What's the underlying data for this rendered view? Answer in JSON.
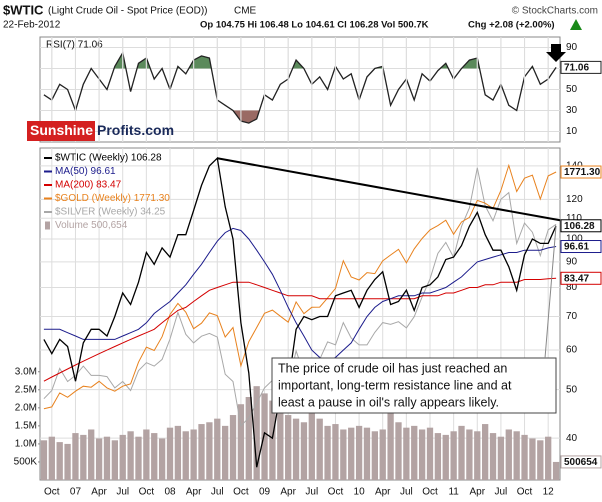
{
  "header": {
    "symbol": "$WTIC",
    "title": "(Light Crude Oil - Spot Price (EOD))",
    "exchange": "CME",
    "credit": "© StockCharts.com",
    "date": "22-Feb-2012",
    "quote": "Op 104.75 Hi 106.48 Lo 104.61 Cl 106.28 Vol 500.7K",
    "change": "Chg +2.08 (+2.00%)"
  },
  "logo": [
    "Sunshine",
    "Profits.com"
  ],
  "chart_data": [
    {
      "type": "line",
      "title": "RSI(7) 71.06",
      "ylim": [
        0,
        100
      ],
      "yticks": [
        10,
        30,
        50,
        70,
        90
      ],
      "grid": true,
      "fill_above": {
        "value": 70,
        "color": "#5b8a5b"
      },
      "fill_below": {
        "value": 30,
        "color": "#9a6a64"
      },
      "x": [
        "2006-09",
        "2006-10",
        "2006-11",
        "2006-12",
        "2007-01",
        "2007-02",
        "2007-03",
        "2007-04",
        "2007-05",
        "2007-06",
        "2007-07",
        "2007-08",
        "2007-09",
        "2007-10",
        "2007-11",
        "2007-12",
        "2008-01",
        "2008-02",
        "2008-03",
        "2008-04",
        "2008-05",
        "2008-06",
        "2008-07",
        "2008-08",
        "2008-09",
        "2008-10",
        "2008-11",
        "2008-12",
        "2009-01",
        "2009-02",
        "2009-03",
        "2009-04",
        "2009-05",
        "2009-06",
        "2009-07",
        "2009-08",
        "2009-09",
        "2009-10",
        "2009-11",
        "2009-12",
        "2010-01",
        "2010-02",
        "2010-03",
        "2010-04",
        "2010-05",
        "2010-06",
        "2010-07",
        "2010-08",
        "2010-09",
        "2010-10",
        "2010-11",
        "2010-12",
        "2011-01",
        "2011-02",
        "2011-03",
        "2011-04",
        "2011-05",
        "2011-06",
        "2011-07",
        "2011-08",
        "2011-09",
        "2011-10",
        "2011-11",
        "2011-12",
        "2012-01",
        "2012-02"
      ],
      "series": [
        {
          "name": "RSI(7)",
          "color": "#222222",
          "end_label": true,
          "values": [
            45,
            40,
            55,
            50,
            30,
            55,
            70,
            60,
            50,
            72,
            85,
            48,
            75,
            80,
            60,
            70,
            50,
            72,
            65,
            78,
            82,
            80,
            40,
            35,
            30,
            20,
            18,
            22,
            45,
            40,
            55,
            60,
            78,
            70,
            55,
            62,
            50,
            72,
            60,
            65,
            40,
            62,
            70,
            72,
            35,
            50,
            60,
            40,
            65,
            58,
            68,
            75,
            60,
            70,
            78,
            80,
            45,
            40,
            55,
            35,
            30,
            62,
            72,
            55,
            60,
            71.06
          ]
        }
      ]
    },
    {
      "type": "line",
      "legend": "upper left",
      "grid": true,
      "ylim": [
        33,
        152
      ],
      "ylog": true,
      "yticks": [
        40,
        50,
        60,
        70,
        80,
        90,
        100,
        110,
        120,
        140
      ],
      "y2lim": [
        433,
        1977
      ],
      "y2log": true,
      "y3lim": [
        7,
        55
      ],
      "y3log": true,
      "yvlim": [
        0,
        9200000
      ],
      "yvticks": [
        {
          "value": 500000,
          "label": "500K"
        },
        {
          "value": 1000000,
          "label": "1.0M"
        },
        {
          "value": 1500000,
          "label": "1.5M"
        },
        {
          "value": 2000000,
          "label": "2.0M"
        },
        {
          "value": 2500000,
          "label": "2.5M"
        },
        {
          "value": 3000000,
          "label": "3.0M"
        }
      ],
      "x": [
        "2006-09",
        "2006-10",
        "2006-11",
        "2006-12",
        "2007-01",
        "2007-02",
        "2007-03",
        "2007-04",
        "2007-05",
        "2007-06",
        "2007-07",
        "2007-08",
        "2007-09",
        "2007-10",
        "2007-11",
        "2007-12",
        "2008-01",
        "2008-02",
        "2008-03",
        "2008-04",
        "2008-05",
        "2008-06",
        "2008-07",
        "2008-08",
        "2008-09",
        "2008-10",
        "2008-11",
        "2008-12",
        "2009-01",
        "2009-02",
        "2009-03",
        "2009-04",
        "2009-05",
        "2009-06",
        "2009-07",
        "2009-08",
        "2009-09",
        "2009-10",
        "2009-11",
        "2009-12",
        "2010-01",
        "2010-02",
        "2010-03",
        "2010-04",
        "2010-05",
        "2010-06",
        "2010-07",
        "2010-08",
        "2010-09",
        "2010-10",
        "2010-11",
        "2010-12",
        "2011-01",
        "2011-02",
        "2011-03",
        "2011-04",
        "2011-05",
        "2011-06",
        "2011-07",
        "2011-08",
        "2011-09",
        "2011-10",
        "2011-11",
        "2011-12",
        "2012-01",
        "2012-02"
      ],
      "xticks": [
        {
          "value": "2006-10",
          "label": "Oct"
        },
        {
          "value": "2007-01",
          "label": "07"
        },
        {
          "value": "2007-04",
          "label": "Apr"
        },
        {
          "value": "2007-07",
          "label": "Jul"
        },
        {
          "value": "2007-10",
          "label": "Oct"
        },
        {
          "value": "2008-01",
          "label": "08"
        },
        {
          "value": "2008-04",
          "label": "Apr"
        },
        {
          "value": "2008-07",
          "label": "Jul"
        },
        {
          "value": "2008-10",
          "label": "Oct"
        },
        {
          "value": "2009-01",
          "label": "09"
        },
        {
          "value": "2009-04",
          "label": "Apr"
        },
        {
          "value": "2009-07",
          "label": "Jul"
        },
        {
          "value": "2009-10",
          "label": "Oct"
        },
        {
          "value": "2010-01",
          "label": "10"
        },
        {
          "value": "2010-04",
          "label": "Apr"
        },
        {
          "value": "2010-07",
          "label": "Jul"
        },
        {
          "value": "2010-10",
          "label": "Oct"
        },
        {
          "value": "2011-01",
          "label": "11"
        },
        {
          "value": "2011-04",
          "label": "Apr"
        },
        {
          "value": "2011-07",
          "label": "Jul"
        },
        {
          "value": "2011-10",
          "label": "Oct"
        },
        {
          "value": "2012-01",
          "label": "12"
        }
      ],
      "series": [
        {
          "name": "Volume 500,654",
          "type": "bar",
          "axis": "yv",
          "color": "#b3a3a3",
          "end_label": true,
          "values": [
            1100000,
            1200000,
            1050000,
            1000000,
            1300000,
            1250000,
            1400000,
            1150000,
            1200000,
            1100000,
            1250000,
            1350000,
            1200000,
            1400000,
            1300000,
            1150000,
            1450000,
            1500000,
            1350000,
            1400000,
            1550000,
            1600000,
            1700000,
            1500000,
            1800000,
            2100000,
            2300000,
            2600000,
            2400000,
            2200000,
            2000000,
            1800000,
            1700000,
            1600000,
            1900000,
            1700000,
            1500000,
            1550000,
            1400000,
            1450000,
            1500000,
            1450000,
            1350000,
            1400000,
            1900000,
            1600000,
            1450000,
            1500000,
            1400000,
            1450000,
            1300000,
            1250000,
            1350000,
            1500000,
            1400000,
            1350000,
            1550000,
            1300000,
            1200000,
            1400000,
            1350000,
            1250000,
            1150000,
            1100000,
            1200000,
            500654
          ]
        },
        {
          "name": "$SILVER (Weekly) 34.25",
          "axis": "y3",
          "color": "#a8a8a8",
          "values": [
            11.6,
            12.2,
            14.0,
            12.9,
            13.4,
            14.2,
            13.4,
            13.4,
            13.3,
            12.4,
            12.9,
            12.2,
            13.8,
            14.5,
            14.2,
            14.8,
            16.8,
            19.8,
            17.3,
            16.4,
            17.1,
            17.4,
            17.0,
            13.5,
            12.9,
            9.8,
            10.3,
            11.3,
            12.4,
            13.0,
            13.1,
            12.6,
            15.6,
            13.6,
            13.9,
            14.8,
            16.5,
            16.2,
            18.6,
            16.9,
            16.2,
            16.2,
            17.5,
            18.6,
            18.4,
            18.7,
            18.0,
            19.3,
            21.8,
            24.4,
            28.6,
            30.6,
            27.9,
            33.8,
            37.9,
            48.6,
            38.4,
            35.0,
            40.0,
            41.7,
            30.4,
            34.5,
            32.6,
            28.2,
            33.1,
            34.25
          ]
        },
        {
          "name": "$GOLD (Weekly) 1771.30",
          "axis": "y2",
          "color": "#e8821e",
          "last_label": "1771.30",
          "values": [
            600,
            605,
            645,
            632,
            650,
            665,
            662,
            680,
            660,
            650,
            665,
            672,
            742,
            795,
            783,
            834,
            923,
            971,
            933,
            865,
            887,
            930,
            918,
            833,
            870,
            730,
            815,
            870,
            928,
            942,
            916,
            891,
            978,
            927,
            954,
            955,
            996,
            1040,
            1180,
            1096,
            1081,
            1118,
            1113,
            1180,
            1212,
            1244,
            1169,
            1246,
            1307,
            1359,
            1386,
            1421,
            1332,
            1409,
            1439,
            1556,
            1536,
            1500,
            1628,
            1826,
            1620,
            1722,
            1746,
            1566,
            1740,
            1771.3
          ]
        },
        {
          "name": "MA(200) 83.47",
          "color": "#d40000",
          "end_label": true,
          "values": [
            52,
            53,
            54,
            55,
            56,
            57,
            58,
            59,
            60,
            61,
            62,
            63,
            64,
            65,
            66,
            68,
            70,
            72,
            73,
            75,
            77,
            79,
            80,
            81,
            82,
            82,
            82,
            81,
            80,
            79,
            78,
            77,
            77,
            77,
            77,
            76,
            76,
            76,
            76,
            76,
            76,
            76,
            76,
            76,
            76,
            76,
            76,
            76,
            77,
            77,
            77,
            78,
            78,
            79,
            80,
            80,
            81,
            81,
            82,
            82,
            82,
            83,
            83,
            83,
            83.3,
            83.47
          ]
        },
        {
          "name": "MA(50) 96.61",
          "color": "#1c1c8c",
          "end_label": true,
          "values": [
            66,
            66,
            66,
            65,
            64,
            63,
            63,
            63,
            63,
            63,
            64,
            65,
            66,
            68,
            71,
            73,
            75,
            78,
            81,
            85,
            89,
            94,
            99,
            103,
            105,
            104,
            100,
            95,
            90,
            85,
            79,
            73,
            68,
            64,
            60,
            58,
            57,
            58,
            60,
            62,
            66,
            70,
            73,
            75,
            76,
            77,
            77,
            77,
            78,
            78,
            79,
            80,
            82,
            84,
            87,
            90,
            91,
            92,
            93,
            94,
            94,
            95,
            95,
            95,
            96,
            96.61
          ]
        },
        {
          "name": "$WTIC (Weekly) 106.28",
          "color": "#000000",
          "end_label": true,
          "values": [
            63,
            59,
            63,
            61,
            52,
            62,
            66,
            66,
            64,
            70,
            78,
            74,
            82,
            94,
            89,
            96,
            92,
            102,
            102,
            114,
            128,
            140,
            145,
            116,
            100,
            68,
            54,
            35,
            41,
            40,
            49,
            51,
            66,
            70,
            69,
            70,
            70,
            77,
            78,
            79,
            73,
            79,
            83,
            86,
            74,
            75,
            79,
            72,
            80,
            81,
            84,
            91,
            92,
            97,
            106,
            113,
            102,
            95,
            95,
            88,
            79,
            93,
            100,
            98,
            98,
            106.28
          ]
        }
      ],
      "trendline": {
        "x": [
          "2008-07",
          "2012-02"
        ],
        "values": [
          145,
          109
        ],
        "color": "#000000"
      },
      "annotation": {
        "text": [
          "The price of crude oil has just reached an",
          "important, long-term resistance line and at",
          "least a pause in oil's rally appears likely."
        ]
      }
    }
  ]
}
